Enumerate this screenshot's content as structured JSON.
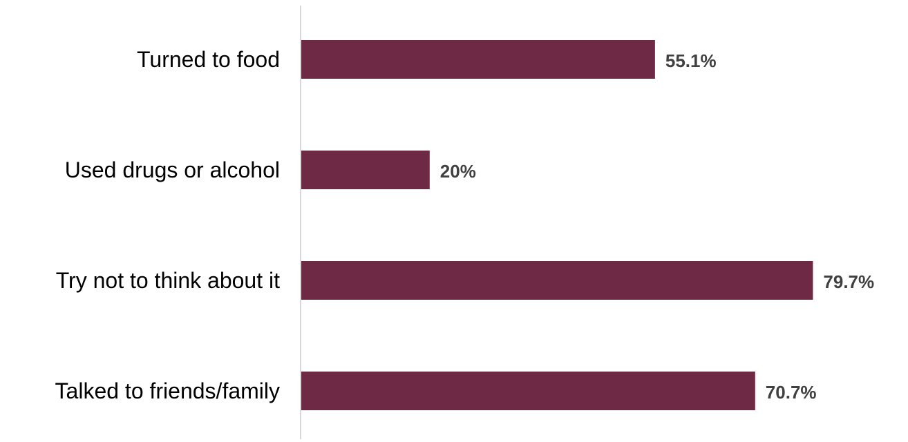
{
  "chart_data": {
    "type": "bar",
    "orientation": "horizontal",
    "categories": [
      "Turned to food",
      "Used drugs or alcohol",
      "Try not to think about it",
      "Talked to friends/family"
    ],
    "values": [
      55.1,
      20,
      79.7,
      70.7
    ],
    "value_labels": [
      "55.1%",
      "20%",
      "79.7%",
      "70.7%"
    ],
    "unit": "%",
    "xlim": [
      0,
      100
    ],
    "grid": false,
    "legend": "none",
    "title": "",
    "xlabel": "",
    "ylabel": "",
    "colors": {
      "bar": "#6e2944",
      "axis": "#d9d9d9",
      "category_text": "#000000",
      "value_text": "#404040"
    }
  }
}
